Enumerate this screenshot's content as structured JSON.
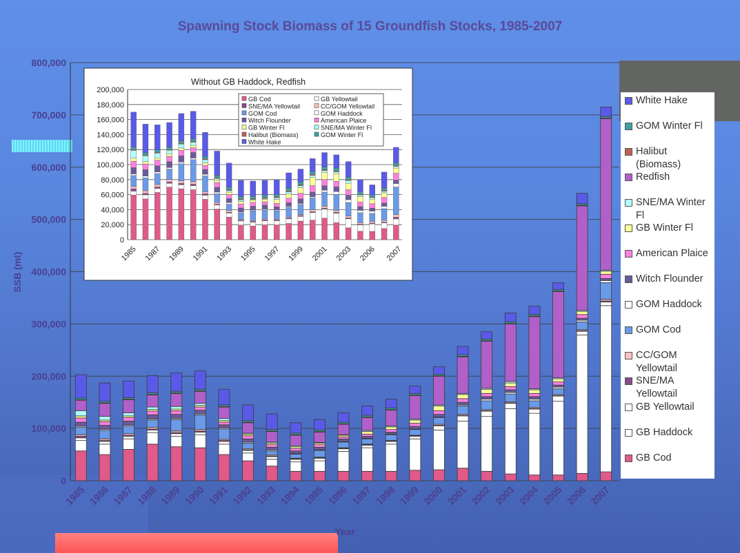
{
  "title": "Spawning Stock Biomass of 15 Groundfish Stocks, 1985-2007",
  "chart_data": {
    "type": "bar",
    "stacked": true,
    "xlabel": "Year",
    "ylabel": "SSB (mt)",
    "ylim": [
      0,
      800000
    ],
    "yticks": [
      "0",
      "100,000",
      "200,000",
      "300,000",
      "400,000",
      "500,000",
      "600,000",
      "700,000",
      "800,000"
    ],
    "categories": [
      "1985",
      "1986",
      "1987",
      "1988",
      "1989",
      "1990",
      "1991",
      "1992",
      "1993",
      "1994",
      "1995",
      "1996",
      "1997",
      "1998",
      "1999",
      "2000",
      "2001",
      "2002",
      "2003",
      "2004",
      "2005",
      "2006",
      "2007"
    ],
    "series": [
      {
        "name": "GB Cod",
        "color": "#e05a8a",
        "values": [
          57000,
          50000,
          60000,
          70000,
          65000,
          63000,
          50000,
          38000,
          28000,
          18000,
          18000,
          18000,
          18000,
          18000,
          20000,
          21000,
          24000,
          18000,
          13000,
          11000,
          11000,
          14000,
          17000
        ]
      },
      {
        "name": "GB Haddock",
        "color": "#ffffff",
        "values": [
          20000,
          20000,
          20000,
          22000,
          20000,
          25000,
          20000,
          15000,
          13000,
          18000,
          20000,
          38000,
          45000,
          52000,
          60000,
          76000,
          90000,
          105000,
          125000,
          118000,
          141000,
          265000,
          318000
        ]
      },
      {
        "name": "GB Yellowtail",
        "color": "#ffffff",
        "values": [
          5000,
          5000,
          5000,
          5000,
          5000,
          5000,
          5000,
          5000,
          5000,
          5000,
          5000,
          5000,
          5000,
          5000,
          5000,
          8000,
          10000,
          10000,
          10000,
          8000,
          10000,
          7000,
          7000
        ]
      },
      {
        "name": "SNE/MA Yellowtail",
        "color": "#8a4a8a",
        "values": [
          3000,
          2000,
          2000,
          2000,
          2000,
          2000,
          2000,
          1000,
          1000,
          1000,
          1000,
          1000,
          1000,
          1000,
          1000,
          1000,
          1000,
          1000,
          1000,
          1000,
          1000,
          1000,
          2000
        ]
      },
      {
        "name": "CC/GOM Yellowtail",
        "color": "#ffc0c0",
        "values": [
          3000,
          3000,
          3000,
          3000,
          3000,
          3000,
          2000,
          2000,
          2000,
          1000,
          1000,
          1000,
          1000,
          1000,
          1000,
          2000,
          2000,
          2000,
          2000,
          2000,
          2000,
          2000,
          3000
        ]
      },
      {
        "name": "GOM Cod",
        "color": "#6a9ae8",
        "values": [
          14000,
          16000,
          14000,
          14000,
          22000,
          28000,
          20000,
          11000,
          8000,
          8000,
          13000,
          11000,
          10000,
          11000,
          11000,
          13000,
          16000,
          17000,
          15000,
          13000,
          11000,
          15000,
          32000
        ]
      },
      {
        "name": "GOM Haddock",
        "color": "#ffffff",
        "values": [
          2000,
          2000,
          2000,
          2000,
          2000,
          2000,
          2000,
          2000,
          2000,
          1000,
          1000,
          1000,
          1000,
          1000,
          1000,
          1000,
          2000,
          3000,
          3000,
          3000,
          3000,
          3000,
          4000
        ]
      },
      {
        "name": "Witch Flounder",
        "color": "#6a5a9a",
        "values": [
          8000,
          8000,
          8000,
          8000,
          8000,
          7000,
          6000,
          6000,
          5000,
          5000,
          5000,
          5000,
          4000,
          4000,
          5000,
          5000,
          5000,
          5000,
          5000,
          5000,
          4000,
          4000,
          4000
        ]
      },
      {
        "name": "American Plaice",
        "color": "#ff80e0",
        "values": [
          8000,
          7000,
          7000,
          7000,
          7000,
          6000,
          5000,
          6000,
          5000,
          5000,
          5000,
          4000,
          4000,
          5000,
          6000,
          7000,
          7000,
          6000,
          6000,
          6000,
          6000,
          7000,
          8000
        ]
      },
      {
        "name": "GB Winter Fl",
        "color": "#ffff99",
        "values": [
          4000,
          3000,
          3000,
          3000,
          3000,
          3000,
          3000,
          3000,
          3000,
          3000,
          3000,
          3000,
          5000,
          5000,
          6000,
          9000,
          8000,
          8000,
          7000,
          7000,
          6000,
          6000,
          6000
        ]
      },
      {
        "name": "SNE/MA Winter Fl",
        "color": "#b0ffff",
        "values": [
          10000,
          7000,
          6000,
          5000,
          5000,
          4000,
          4000,
          2000,
          2000,
          2000,
          1000,
          1000,
          2000,
          2000,
          2000,
          2000,
          2000,
          2000,
          3000,
          2000,
          2000,
          2000,
          2000
        ]
      },
      {
        "name": "Redfish",
        "color": "#b060c8",
        "values": [
          20000,
          25000,
          25000,
          23000,
          25000,
          23000,
          22000,
          20000,
          20000,
          20000,
          20000,
          20000,
          25000,
          30000,
          45000,
          55000,
          70000,
          90000,
          110000,
          138000,
          165000,
          200000,
          290000
        ]
      },
      {
        "name": "Halibut (Biomass)",
        "color": "#c06050",
        "values": [
          1000,
          1000,
          1000,
          1000,
          1000,
          1000,
          1000,
          1000,
          1000,
          1000,
          1000,
          1000,
          1000,
          1000,
          1000,
          1000,
          1000,
          1000,
          1000,
          1000,
          1000,
          1000,
          1000
        ]
      },
      {
        "name": "GOM Winter Fl",
        "color": "#40a0a0",
        "values": [
          3000,
          3000,
          3000,
          3000,
          3000,
          3000,
          3000,
          3000,
          3000,
          3000,
          3000,
          3000,
          3000,
          3000,
          3000,
          3000,
          3000,
          3000,
          3000,
          3000,
          3000,
          3000,
          3000
        ]
      },
      {
        "name": "White Hake",
        "color": "#5a5ae8",
        "values": [
          45000,
          35000,
          32000,
          33000,
          35000,
          35000,
          30000,
          30000,
          30000,
          20000,
          20000,
          18000,
          18000,
          17000,
          14000,
          14000,
          16000,
          14000,
          17000,
          16000,
          13000,
          20000,
          18000
        ]
      }
    ],
    "inset": {
      "type": "bar",
      "stacked": true,
      "title": "Without GB Haddock, Redfish",
      "ylim": [
        0,
        200000
      ],
      "yticks": [
        "0",
        "20,000",
        "40,000",
        "60,000",
        "80,000",
        "100,000",
        "120,000",
        "140,000",
        "160,000",
        "180,000",
        "200,000"
      ],
      "xtick_labels": [
        "1985",
        "1987",
        "1989",
        "1991",
        "1993",
        "1995",
        "1997",
        "1999",
        "2001",
        "2003",
        "2006",
        "2007"
      ],
      "legend_order": [
        "GB Cod",
        "GB Yellowtail",
        "SNE/MA Yellowtail",
        "CC/GOM Yellowtail",
        "GOM Cod",
        "GOM Haddock",
        "Witch Flounder",
        "American Plaice",
        "GB Winter Fl",
        "SNE/MA Winter Fl",
        "Halibut (Biomass)",
        "GOM Winter Fl",
        "White Hake"
      ],
      "totals": [
        170000,
        154000,
        153000,
        156000,
        168000,
        171000,
        143000,
        118000,
        102000,
        79000,
        78000,
        79000,
        80000,
        89000,
        94000,
        108000,
        116000,
        113000,
        104000,
        80000,
        73000,
        90000,
        123000
      ]
    }
  },
  "legend_items": [
    "White Hake",
    "GOM Winter Fl",
    "Halibut (Biomass)",
    "Redfish",
    "SNE/MA Winter Fl",
    "GB Winter Fl",
    "American Plaice",
    "Witch Flounder",
    "GOM Haddock",
    "GOM Cod",
    "CC/GOM Yellowtail",
    "SNE/MA Yellowtail",
    "GB Yellowtail",
    "GB Haddock",
    "GB Cod"
  ]
}
